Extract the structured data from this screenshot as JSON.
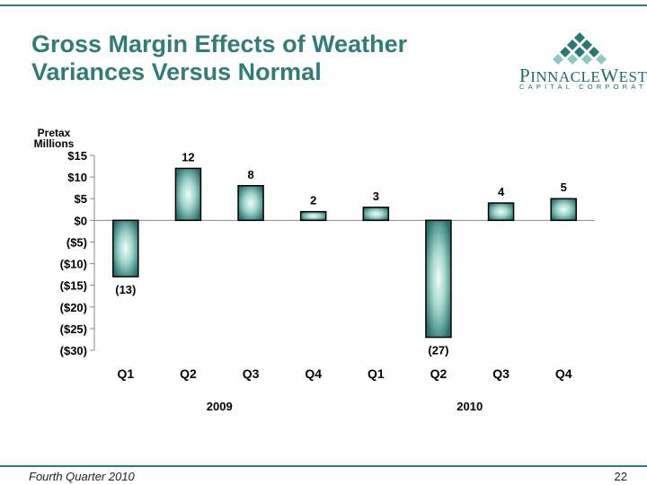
{
  "slide": {
    "title_line1": "Gross Margin Effects of Weather",
    "title_line2": "Variances Versus Normal",
    "footer_left": "Fourth Quarter 2010",
    "page_number": "22",
    "colors": {
      "accent": "#2e7f7b",
      "bar_dark": "#2a6f6c",
      "bar_light": "#e9f7f5"
    }
  },
  "logo": {
    "name_first_initial": "P",
    "name_first_rest": "INNACLE",
    "name_second_initial": "W",
    "name_second_rest": "EST",
    "subtitle": "CAPITAL CORPORATION"
  },
  "chart_data": {
    "type": "bar",
    "ylabel": [
      "Pretax",
      "Millions"
    ],
    "ylim": [
      -30,
      15
    ],
    "yticks": [
      15,
      10,
      5,
      0,
      -5,
      -10,
      -15,
      -20,
      -25,
      -30
    ],
    "ytick_labels": [
      "$15",
      "$10",
      "$5",
      "$0",
      "($5)",
      "($10)",
      "($15)",
      "($20)",
      "($25)",
      "($30)"
    ],
    "categories": [
      "Q1",
      "Q2",
      "Q3",
      "Q4",
      "Q1",
      "Q2",
      "Q3",
      "Q4"
    ],
    "values": [
      -13,
      12,
      8,
      2,
      3,
      -27,
      4,
      5
    ],
    "data_labels": [
      "(13)",
      "12",
      "8",
      "2",
      "3",
      "(27)",
      "4",
      "5"
    ],
    "groups": [
      {
        "label": "2009",
        "categories": [
          0,
          1,
          2,
          3
        ]
      },
      {
        "label": "2010",
        "categories": [
          4,
          5,
          6,
          7
        ]
      }
    ],
    "grid": false,
    "legend": "none"
  }
}
